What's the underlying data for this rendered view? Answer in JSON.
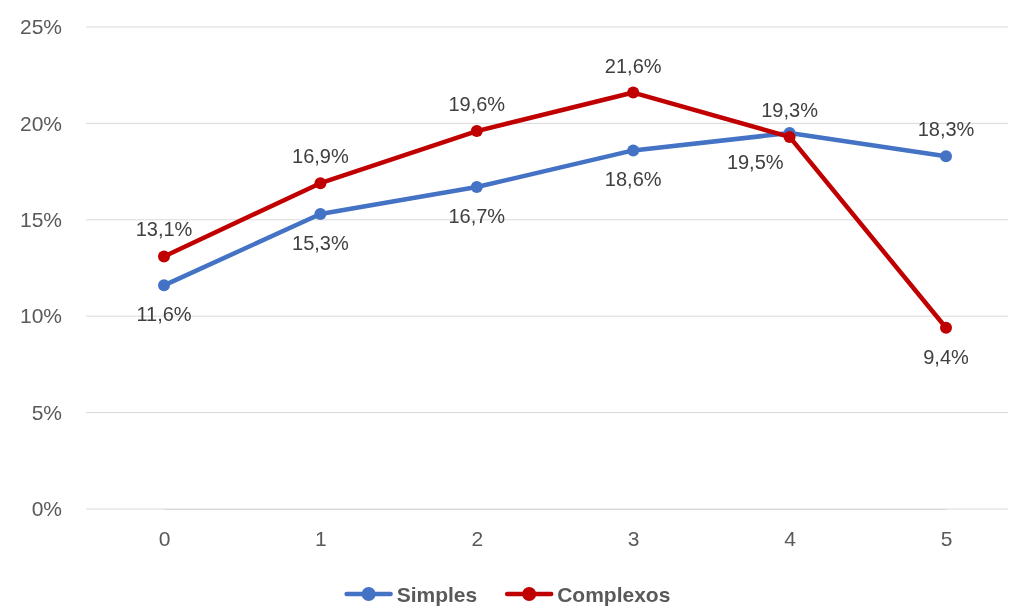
{
  "chart_data": {
    "type": "line",
    "categories": [
      "0",
      "1",
      "2",
      "3",
      "4",
      "5"
    ],
    "series": [
      {
        "name": "Simples",
        "color": "#4472c4",
        "values": [
          11.6,
          15.3,
          16.7,
          18.6,
          19.5,
          18.3
        ],
        "value_labels": [
          "11,6%",
          "15,3%",
          "16,7%",
          "18,6%",
          "19,5%",
          "18,3%"
        ]
      },
      {
        "name": "Complexos",
        "color": "#c00000",
        "values": [
          13.1,
          16.9,
          19.6,
          21.6,
          19.3,
          9.4
        ],
        "value_labels": [
          "13,1%",
          "16,9%",
          "19,6%",
          "21,6%",
          "19,3%",
          "9,4%"
        ]
      }
    ],
    "ylim": [
      0,
      25
    ],
    "yticks": [
      {
        "value": 0,
        "label": "0%"
      },
      {
        "value": 5,
        "label": "5%"
      },
      {
        "value": 10,
        "label": "10%"
      },
      {
        "value": 15,
        "label": "15%"
      },
      {
        "value": 20,
        "label": "20%"
      },
      {
        "value": 25,
        "label": "25%"
      }
    ],
    "grid": "y",
    "legend": "bottom",
    "marker": "circle",
    "line_style": "solid"
  }
}
